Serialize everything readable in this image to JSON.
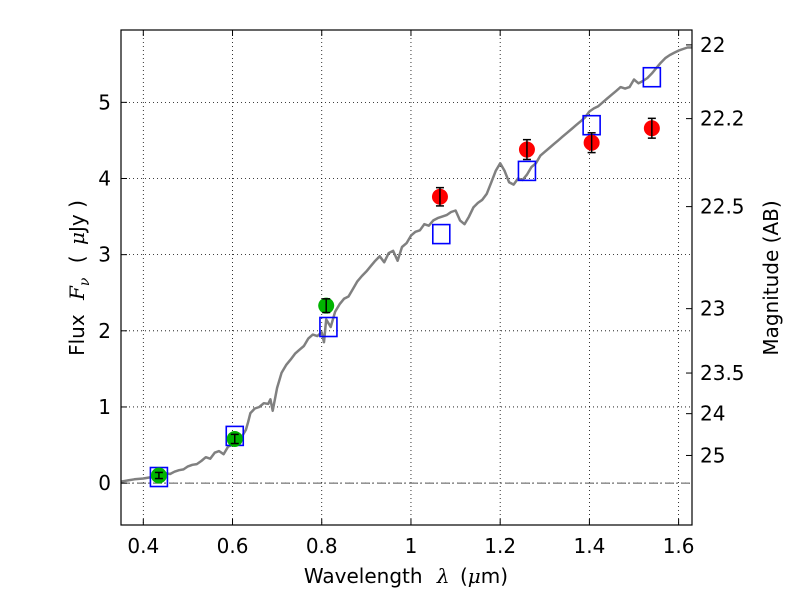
{
  "chart_data": {
    "type": "scatter",
    "title": "",
    "xlabel": "Wavelength",
    "xlabel_symbol": "λ",
    "xlabel_unit_prefix": "(",
    "xlabel_unit_mu": "μ",
    "xlabel_unit_rest": "m)",
    "ylabel": "Flux",
    "ylabel_symbol": "F",
    "ylabel_symbol_sub": "ν",
    "ylabel_unit_prefix": "(",
    "ylabel_unit_mu": "μ",
    "ylabel_unit_rest": "Jy )",
    "y2label": "Magnitude (AB)",
    "xlim": [
      0.35,
      1.63
    ],
    "ylim": [
      -0.55,
      5.95
    ],
    "grid": true,
    "xticks": [
      0.4,
      0.6,
      0.8,
      1.0,
      1.2,
      1.4,
      1.6
    ],
    "xtick_labels": [
      "0.4",
      "0.6",
      "0.8",
      "1",
      "1.2",
      "1.4",
      "1.6"
    ],
    "yticks": [
      0,
      1,
      2,
      3,
      4,
      5
    ],
    "ytick_labels": [
      "0",
      "1",
      "2",
      "3",
      "4",
      "5"
    ],
    "y2ticks": [
      {
        "label": "22",
        "mag": 22.0
      },
      {
        "label": "22.2",
        "mag": 22.2
      },
      {
        "label": "22.5",
        "mag": 22.5
      },
      {
        "label": "23",
        "mag": 23.0
      },
      {
        "label": "23.5",
        "mag": 23.5
      },
      {
        "label": "24",
        "mag": 24.0
      },
      {
        "label": "25",
        "mag": 25.0
      }
    ],
    "series": [
      {
        "name": "template SED",
        "kind": "line",
        "color": "#808080",
        "x": [
          0.35,
          0.36,
          0.38,
          0.4,
          0.42,
          0.44,
          0.45,
          0.46,
          0.47,
          0.48,
          0.49,
          0.5,
          0.51,
          0.52,
          0.53,
          0.54,
          0.55,
          0.56,
          0.57,
          0.58,
          0.59,
          0.6,
          0.61,
          0.62,
          0.63,
          0.635,
          0.64,
          0.65,
          0.66,
          0.67,
          0.68,
          0.685,
          0.69,
          0.7,
          0.71,
          0.72,
          0.73,
          0.74,
          0.75,
          0.76,
          0.77,
          0.78,
          0.79,
          0.8,
          0.805,
          0.81,
          0.82,
          0.83,
          0.84,
          0.85,
          0.86,
          0.87,
          0.88,
          0.89,
          0.9,
          0.91,
          0.92,
          0.93,
          0.94,
          0.95,
          0.96,
          0.97,
          0.98,
          0.99,
          1.0,
          1.01,
          1.02,
          1.03,
          1.04,
          1.05,
          1.06,
          1.07,
          1.08,
          1.09,
          1.1,
          1.11,
          1.12,
          1.13,
          1.14,
          1.15,
          1.16,
          1.17,
          1.18,
          1.19,
          1.2,
          1.21,
          1.22,
          1.23,
          1.24,
          1.25,
          1.26,
          1.27,
          1.28,
          1.29,
          1.3,
          1.31,
          1.32,
          1.33,
          1.34,
          1.35,
          1.36,
          1.37,
          1.38,
          1.39,
          1.4,
          1.41,
          1.42,
          1.43,
          1.44,
          1.45,
          1.46,
          1.47,
          1.48,
          1.49,
          1.5,
          1.51,
          1.52,
          1.53,
          1.54,
          1.55,
          1.56,
          1.57,
          1.58,
          1.59,
          1.6,
          1.61,
          1.62,
          1.63
        ],
        "y": [
          0.02,
          0.03,
          0.05,
          0.06,
          0.08,
          0.1,
          0.13,
          0.12,
          0.15,
          0.17,
          0.18,
          0.22,
          0.24,
          0.25,
          0.29,
          0.34,
          0.32,
          0.4,
          0.42,
          0.38,
          0.48,
          0.5,
          0.56,
          0.6,
          0.7,
          0.8,
          0.92,
          0.98,
          1.0,
          1.05,
          1.04,
          1.1,
          0.95,
          1.25,
          1.45,
          1.55,
          1.62,
          1.7,
          1.75,
          1.8,
          1.9,
          1.95,
          1.93,
          1.98,
          1.85,
          2.15,
          2.05,
          2.25,
          2.35,
          2.42,
          2.45,
          2.55,
          2.65,
          2.72,
          2.78,
          2.85,
          2.92,
          2.98,
          2.9,
          3.02,
          3.05,
          2.92,
          3.1,
          3.15,
          3.25,
          3.3,
          3.32,
          3.4,
          3.38,
          3.45,
          3.48,
          3.5,
          3.52,
          3.56,
          3.58,
          3.45,
          3.4,
          3.5,
          3.62,
          3.68,
          3.72,
          3.8,
          3.95,
          4.1,
          4.2,
          4.1,
          3.95,
          3.92,
          4.0,
          3.98,
          4.05,
          4.15,
          4.2,
          4.3,
          4.35,
          4.4,
          4.45,
          4.5,
          4.55,
          4.6,
          4.65,
          4.7,
          4.75,
          4.8,
          4.88,
          4.92,
          4.95,
          5.0,
          5.05,
          5.1,
          5.15,
          5.2,
          5.18,
          5.2,
          5.3,
          5.25,
          5.28,
          5.32,
          5.38,
          5.45,
          5.52,
          5.58,
          5.62,
          5.65,
          5.68,
          5.7,
          5.72,
          5.72
        ]
      },
      {
        "name": "observed (green)",
        "kind": "points",
        "color": "#00b400",
        "x": [
          0.435,
          0.605,
          0.81
        ],
        "y": [
          0.1,
          0.58,
          2.33
        ],
        "yerr": [
          0.04,
          0.06,
          0.09
        ]
      },
      {
        "name": "observed (red)",
        "kind": "points",
        "color": "#ff0000",
        "x": [
          1.065,
          1.26,
          1.405,
          1.54
        ],
        "y": [
          3.76,
          4.38,
          4.47,
          4.66
        ],
        "yerr": [
          0.12,
          0.13,
          0.13,
          0.13
        ]
      },
      {
        "name": "model photometry",
        "kind": "squares",
        "color": "#0000ff",
        "x": [
          0.435,
          0.605,
          0.815,
          1.068,
          1.26,
          1.405,
          1.54
        ],
        "y": [
          0.08,
          0.62,
          2.05,
          3.27,
          4.1,
          4.7,
          5.33
        ]
      }
    ]
  }
}
